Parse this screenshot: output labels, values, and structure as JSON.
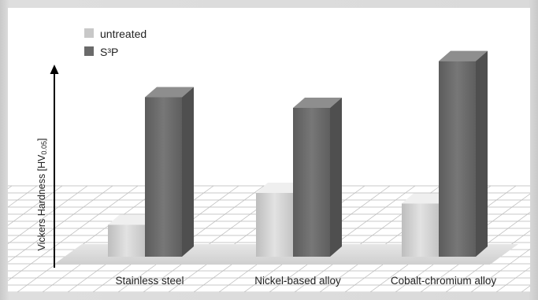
{
  "chart_data": {
    "type": "bar",
    "title": "",
    "xlabel": "",
    "ylabel": "Vickers Hardness [HV",
    "ylabel_sub": "0.05",
    "ylabel_close": "]",
    "categories": [
      "Stainless steel",
      "Nickel-based alloy",
      "Cobalt-chromium alloy"
    ],
    "series": [
      {
        "name": "untreated",
        "color": "#c8c8c8",
        "values": [
          15,
          30,
          25
        ]
      },
      {
        "name": "S³P",
        "color": "#6a6a6a",
        "values": [
          75,
          70,
          92
        ]
      }
    ],
    "ylim": [
      0,
      100
    ],
    "y_ticks_shown": false,
    "grid": "perspective floor grid",
    "legend_position": "top-left",
    "style": "3d-bars"
  }
}
